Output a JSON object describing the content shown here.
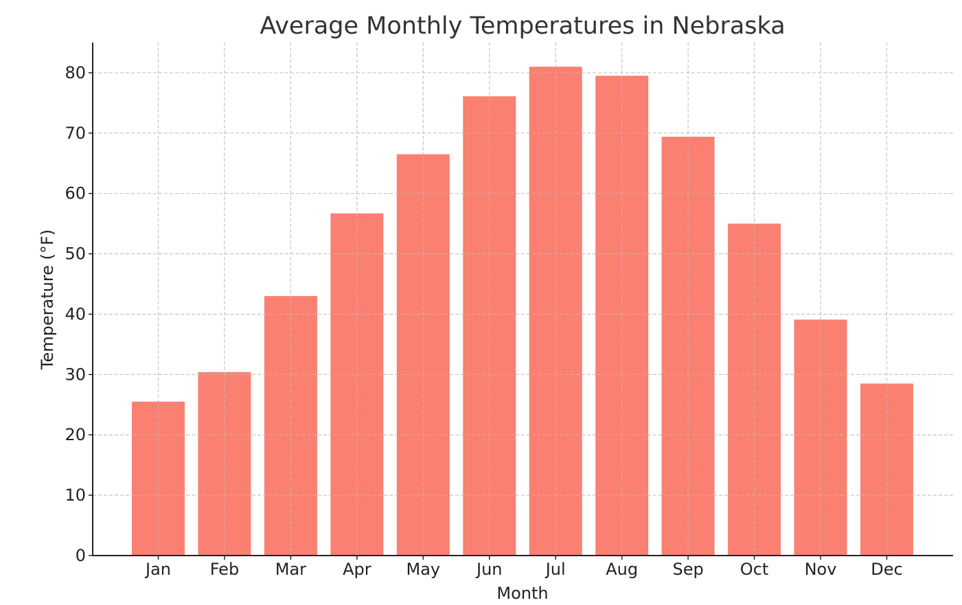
{
  "chart_data": {
    "type": "bar",
    "title": "Average Monthly Temperatures in Nebraska",
    "xlabel": "Month",
    "ylabel": "Temperature (°F)",
    "categories": [
      "Jan",
      "Feb",
      "Mar",
      "Apr",
      "May",
      "Jun",
      "Jul",
      "Aug",
      "Sep",
      "Oct",
      "Nov",
      "Dec"
    ],
    "values": [
      25.5,
      30.4,
      43.0,
      56.7,
      66.5,
      76.1,
      81.0,
      79.5,
      69.4,
      55.0,
      39.1,
      28.5
    ],
    "yticks": [
      0,
      10,
      20,
      30,
      40,
      50,
      60,
      70,
      80
    ],
    "ylim": [
      0,
      85
    ],
    "grid": true,
    "colors": {
      "bar": "#fa8072",
      "grid": "#c8c8c8",
      "axis": "#222222"
    }
  }
}
